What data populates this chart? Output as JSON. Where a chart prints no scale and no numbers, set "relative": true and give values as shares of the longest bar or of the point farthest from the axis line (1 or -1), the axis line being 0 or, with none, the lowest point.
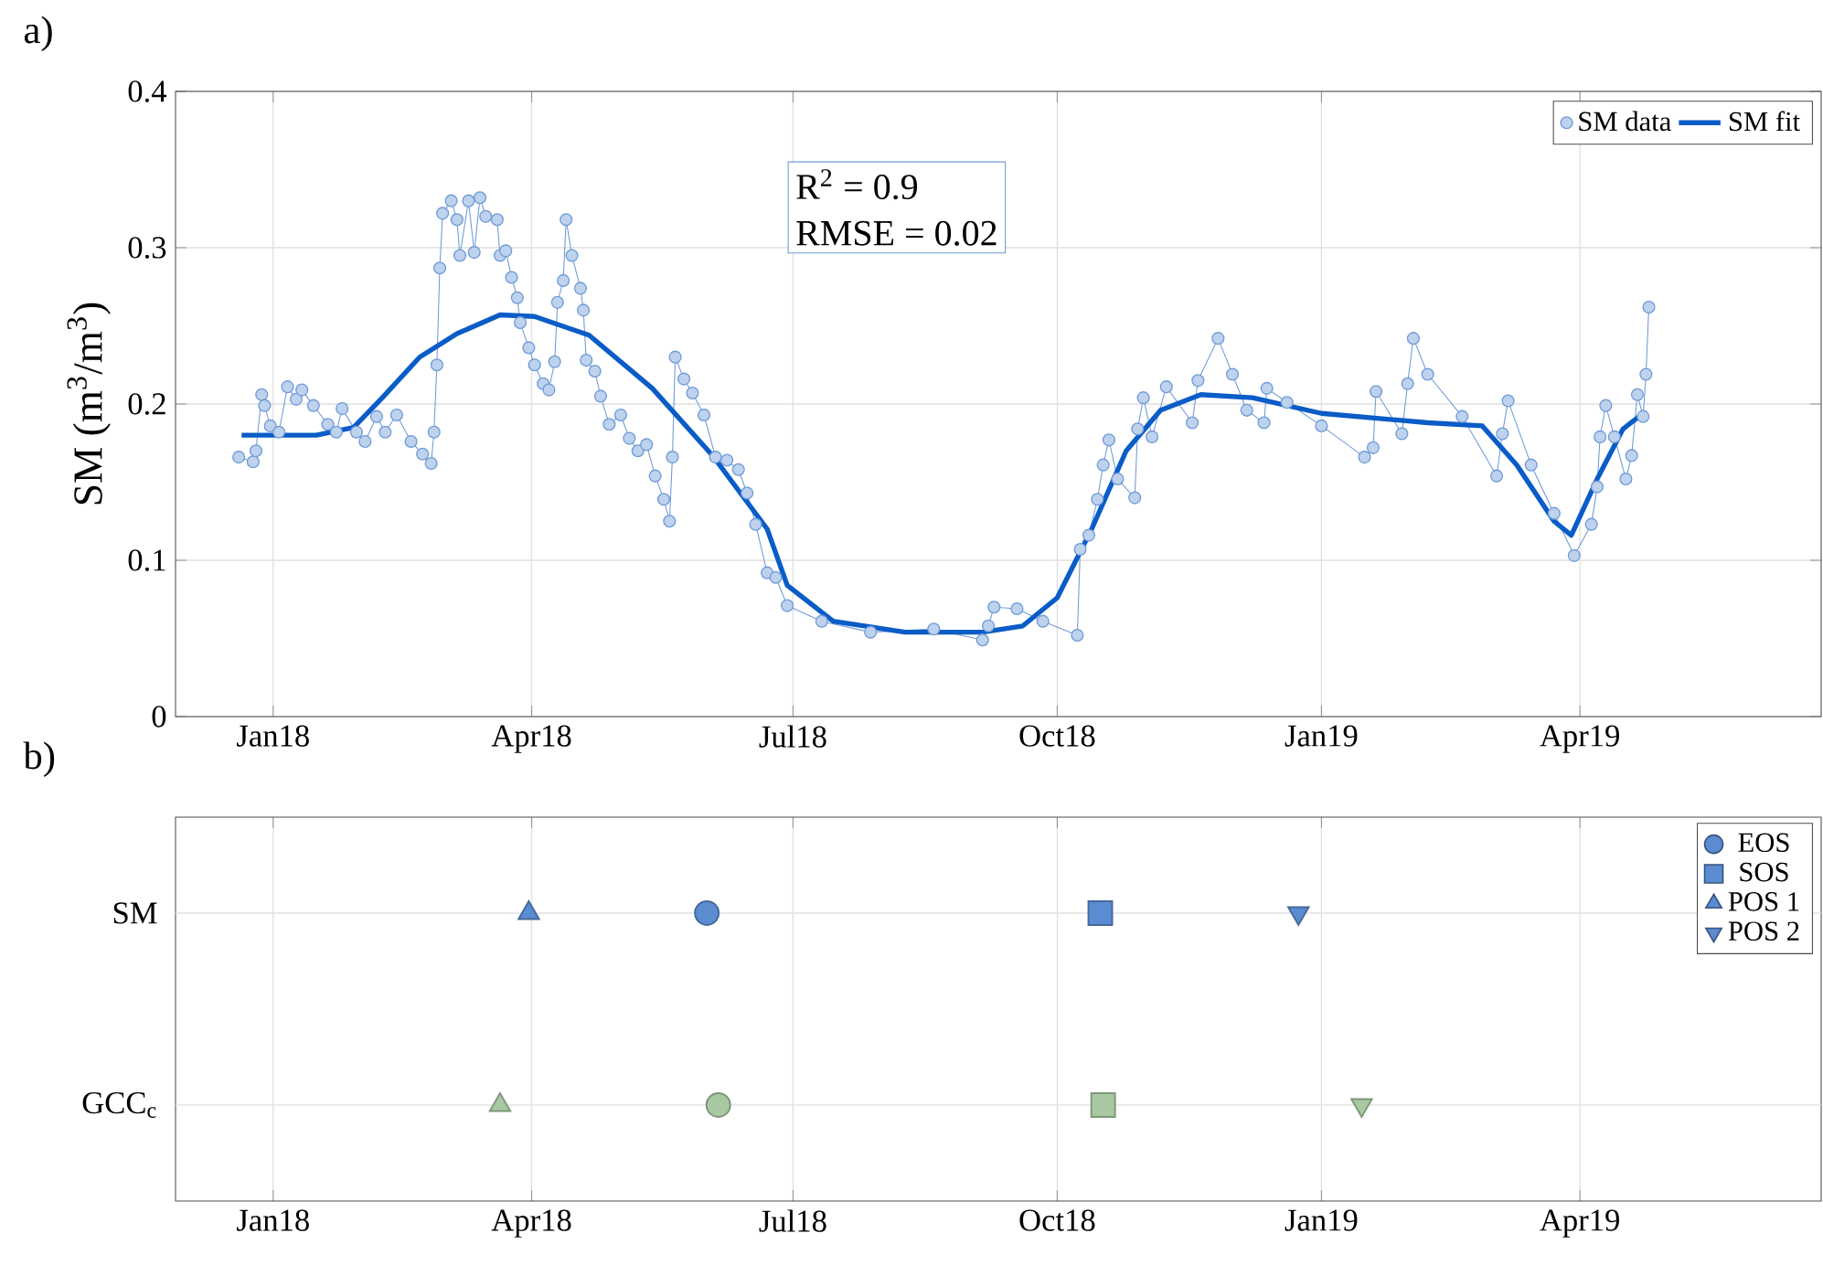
{
  "chart_data": [
    {
      "type": "line",
      "title": "a)",
      "ylabel": "SM (m$^{3}$/m$^{3}$)",
      "xlim": [
        "2017-11-28",
        "2019-06-24"
      ],
      "xticks": [
        {
          "value": "2018-01-01",
          "label": "Jan18"
        },
        {
          "value": "2018-04-01",
          "label": "Apr18"
        },
        {
          "value": "2018-07-01",
          "label": "Jul18"
        },
        {
          "value": "2018-10-01",
          "label": "Oct18"
        },
        {
          "value": "2019-01-01",
          "label": "Jan19"
        },
        {
          "value": "2019-04-01",
          "label": "Apr19"
        }
      ],
      "ylim": [
        0,
        0.4
      ],
      "yticks": [
        0,
        0.1,
        0.2,
        0.3,
        0.4
      ],
      "grid": true,
      "legend": "top right",
      "annotations": [
        "R$^{2}$ = 0.9",
        "RMSE = 0.02"
      ],
      "series": [
        {
          "name": "SM data",
          "color": "#6f9bd8",
          "marker": "circle",
          "line_style": "solid",
          "x": [
            "2017-12-20",
            "2017-12-25",
            "2017-12-26",
            "2017-12-28",
            "2017-12-29",
            "2017-12-31",
            "2018-01-03",
            "2018-01-06",
            "2018-01-09",
            "2018-01-11",
            "2018-01-15",
            "2018-01-20",
            "2018-01-23",
            "2018-01-25",
            "2018-01-30",
            "2018-02-02",
            "2018-02-06",
            "2018-02-09",
            "2018-02-13",
            "2018-02-18",
            "2018-02-22",
            "2018-02-25",
            "2018-02-26",
            "2018-02-27",
            "2018-02-28",
            "2018-03-01",
            "2018-03-04",
            "2018-03-06",
            "2018-03-07",
            "2018-03-10",
            "2018-03-12",
            "2018-03-14",
            "2018-03-16",
            "2018-03-20",
            "2018-03-21",
            "2018-03-23",
            "2018-03-25",
            "2018-03-27",
            "2018-03-28",
            "2018-03-31",
            "2018-04-02",
            "2018-04-05",
            "2018-04-07",
            "2018-04-09",
            "2018-04-10",
            "2018-04-12",
            "2018-04-13",
            "2018-04-15",
            "2018-04-18",
            "2018-04-19",
            "2018-04-20",
            "2018-04-23",
            "2018-04-25",
            "2018-04-28",
            "2018-05-02",
            "2018-05-05",
            "2018-05-08",
            "2018-05-11",
            "2018-05-14",
            "2018-05-17",
            "2018-05-19",
            "2018-05-20",
            "2018-05-21",
            "2018-05-24",
            "2018-05-27",
            "2018-05-31",
            "2018-06-04",
            "2018-06-08",
            "2018-06-12",
            "2018-06-15",
            "2018-06-18",
            "2018-06-22",
            "2018-06-25",
            "2018-06-29",
            "2018-07-11",
            "2018-07-28",
            "2018-08-19",
            "2018-09-05",
            "2018-09-07",
            "2018-09-09",
            "2018-09-17",
            "2018-09-26",
            "2018-10-08",
            "2018-10-09",
            "2018-10-12",
            "2018-10-15",
            "2018-10-17",
            "2018-10-19",
            "2018-10-22",
            "2018-10-28",
            "2018-10-29",
            "2018-10-31",
            "2018-11-03",
            "2018-11-08",
            "2018-11-17",
            "2018-11-19",
            "2018-11-26",
            "2018-12-01",
            "2018-12-06",
            "2018-12-12",
            "2018-12-13",
            "2018-12-20",
            "2019-01-01",
            "2019-01-16",
            "2019-01-19",
            "2019-01-20",
            "2019-01-29",
            "2019-01-31",
            "2019-02-02",
            "2019-02-07",
            "2019-02-19",
            "2019-03-03",
            "2019-03-05",
            "2019-03-07",
            "2019-03-15",
            "2019-03-23",
            "2019-03-30",
            "2019-04-05",
            "2019-04-07",
            "2019-04-08",
            "2019-04-10",
            "2019-04-13",
            "2019-04-17",
            "2019-04-19",
            "2019-04-21",
            "2019-04-23",
            "2019-04-24",
            "2019-04-25"
          ],
          "values": [
            0.166,
            0.163,
            0.17,
            0.206,
            0.199,
            0.186,
            0.182,
            0.211,
            0.203,
            0.209,
            0.199,
            0.187,
            0.182,
            0.197,
            0.182,
            0.176,
            0.192,
            0.182,
            0.193,
            0.176,
            0.168,
            0.162,
            0.182,
            0.225,
            0.287,
            0.322,
            0.33,
            0.318,
            0.295,
            0.33,
            0.297,
            0.332,
            0.32,
            0.318,
            0.295,
            0.298,
            0.281,
            0.268,
            0.252,
            0.236,
            0.225,
            0.213,
            0.209,
            0.227,
            0.265,
            0.279,
            0.318,
            0.295,
            0.274,
            0.26,
            0.228,
            0.221,
            0.205,
            0.187,
            0.193,
            0.178,
            0.17,
            0.174,
            0.154,
            0.139,
            0.125,
            0.166,
            0.23,
            0.216,
            0.207,
            0.193,
            0.166,
            0.164,
            0.158,
            0.143,
            0.123,
            0.092,
            0.089,
            0.071,
            0.061,
            0.054,
            0.056,
            0.049,
            0.058,
            0.07,
            0.069,
            0.061,
            0.052,
            0.107,
            0.116,
            0.139,
            0.161,
            0.177,
            0.152,
            0.14,
            0.184,
            0.204,
            0.179,
            0.211,
            0.188,
            0.215,
            0.242,
            0.219,
            0.196,
            0.188,
            0.21,
            0.201,
            0.186,
            0.166,
            0.172,
            0.208,
            0.181,
            0.213,
            0.242,
            0.219,
            0.192,
            0.154,
            0.181,
            0.202,
            0.161,
            0.13,
            0.103,
            0.123,
            0.147,
            0.179,
            0.199,
            0.179,
            0.152,
            0.167,
            0.206,
            0.192,
            0.219,
            0.262
          ]
        },
        {
          "name": "SM fit",
          "color": "#0a5cc7",
          "marker": "none",
          "line_style": "solid",
          "x": [
            "2017-12-21",
            "2018-01-16",
            "2018-01-29",
            "2018-02-08",
            "2018-02-21",
            "2018-03-06",
            "2018-03-21",
            "2018-04-02",
            "2018-04-21",
            "2018-05-13",
            "2018-06-03",
            "2018-06-22",
            "2018-06-29",
            "2018-07-15",
            "2018-08-09",
            "2018-09-05",
            "2018-09-19",
            "2018-10-01",
            "2018-10-13",
            "2018-10-25",
            "2018-11-06",
            "2018-11-20",
            "2018-12-08",
            "2019-01-01",
            "2019-02-07",
            "2019-02-26",
            "2019-03-10",
            "2019-03-23",
            "2019-03-29",
            "2019-04-07",
            "2019-04-16",
            "2019-04-23"
          ],
          "values": [
            0.18,
            0.18,
            0.185,
            0.204,
            0.23,
            0.245,
            0.257,
            0.256,
            0.244,
            0.21,
            0.167,
            0.12,
            0.084,
            0.061,
            0.054,
            0.054,
            0.058,
            0.076,
            0.12,
            0.17,
            0.196,
            0.206,
            0.204,
            0.194,
            0.188,
            0.186,
            0.161,
            0.125,
            0.116,
            0.152,
            0.184,
            0.194
          ]
        }
      ]
    },
    {
      "type": "scatter",
      "title": "b)",
      "relative": true,
      "annotations": [
        "SM",
        "GCC$_{c}$"
      ],
      "xlim": [
        "2017-11-28",
        "2019-06-24"
      ],
      "xticks": [
        {
          "value": "2018-01-01",
          "label": "Jan18"
        },
        {
          "value": "2018-04-01",
          "label": "Apr18"
        },
        {
          "value": "2018-07-01",
          "label": "Jul18"
        },
        {
          "value": "2018-10-01",
          "label": "Oct18"
        },
        {
          "value": "2019-01-01",
          "label": "Jan19"
        },
        {
          "value": "2019-04-01",
          "label": "Apr19"
        }
      ],
      "grid": true,
      "legend": "top right",
      "series": [
        {
          "name": "EOS",
          "marker": "circle",
          "colors": [
            "#5b8bd0",
            "#a8c8a2"
          ],
          "x": [
            "2018-06-01",
            "2018-06-05"
          ],
          "values": [
            1,
            0
          ]
        },
        {
          "name": "SOS",
          "marker": "square",
          "colors": [
            "#5b8bd0",
            "#a8c8a2"
          ],
          "x": [
            "2018-10-16",
            "2018-10-17"
          ],
          "values": [
            1,
            0
          ]
        },
        {
          "name": "POS 1",
          "marker": "triangle",
          "colors": [
            "#5b8bd0",
            "#a8c8a2"
          ],
          "x": [
            "2018-03-31",
            "2018-03-21"
          ],
          "values": [
            1,
            0
          ]
        },
        {
          "name": "POS 2",
          "marker": "triangle-down",
          "colors": [
            "#5b8bd0",
            "#a8c8a2"
          ],
          "x": [
            "2018-12-24",
            "2019-01-15"
          ],
          "values": [
            1,
            0
          ]
        }
      ]
    }
  ]
}
